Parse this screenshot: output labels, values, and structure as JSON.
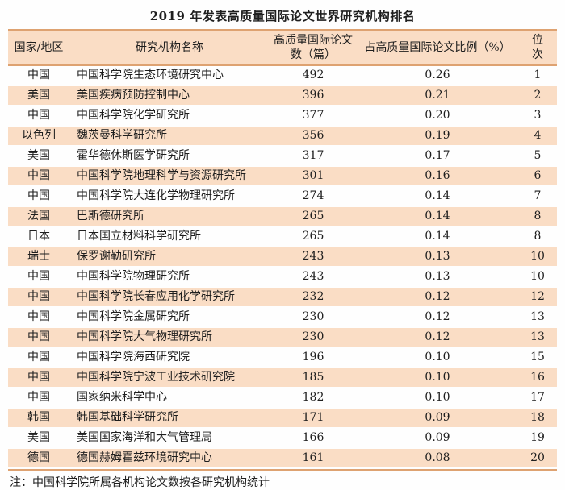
{
  "title": "2019 年发表高质量国际论文世界研究机构排名",
  "note": "注：中国科学院所属各机构论文数按各研究机构统计",
  "colors": {
    "row_highlight": "#faddc5",
    "rule_line": "#dea271",
    "text": "#1e1e1e",
    "background": "#fefefe"
  },
  "table": {
    "headers": {
      "country": "国家/地区",
      "institution": "研究机构名称",
      "papers": "高质量国际论文数（篇）",
      "ratio": "占高质量国际论文比例（%）",
      "rank": "位次"
    },
    "rows": [
      [
        "中国",
        "中国科学院生态环境研究中心",
        "492",
        "0.26",
        "1"
      ],
      [
        "美国",
        "美国疾病预防控制中心",
        "396",
        "0.21",
        "2"
      ],
      [
        "中国",
        "中国科学院化学研究所",
        "377",
        "0.20",
        "3"
      ],
      [
        "以色列",
        "魏茨曼科学研究所",
        "356",
        "0.19",
        "4"
      ],
      [
        "美国",
        "霍华德休斯医学研究所",
        "317",
        "0.17",
        "5"
      ],
      [
        "中国",
        "中国科学院地理科学与资源研究所",
        "301",
        "0.16",
        "6"
      ],
      [
        "中国",
        "中国科学院大连化学物理研究所",
        "274",
        "0.14",
        "7"
      ],
      [
        "法国",
        "巴斯德研究所",
        "265",
        "0.14",
        "8"
      ],
      [
        "日本",
        "日本国立材料科学研究所",
        "265",
        "0.14",
        "8"
      ],
      [
        "瑞士",
        "保罗谢勒研究所",
        "243",
        "0.13",
        "10"
      ],
      [
        "中国",
        "中国科学院物理研究所",
        "243",
        "0.13",
        "10"
      ],
      [
        "中国",
        "中国科学院长春应用化学研究所",
        "232",
        "0.12",
        "12"
      ],
      [
        "中国",
        "中国科学院金属研究所",
        "230",
        "0.12",
        "13"
      ],
      [
        "中国",
        "中国科学院大气物理研究所",
        "230",
        "0.12",
        "13"
      ],
      [
        "中国",
        "中国科学院海西研究院",
        "196",
        "0.10",
        "15"
      ],
      [
        "中国",
        "中国科学院宁波工业技术研究院",
        "185",
        "0.10",
        "16"
      ],
      [
        "中国",
        "国家纳米科学中心",
        "182",
        "0.10",
        "17"
      ],
      [
        "韩国",
        "韩国基础科学研究所",
        "171",
        "0.09",
        "18"
      ],
      [
        "美国",
        "美国国家海洋和大气管理局",
        "166",
        "0.09",
        "19"
      ],
      [
        "德国",
        "德国赫姆霍兹环境研究中心",
        "161",
        "0.08",
        "20"
      ]
    ]
  }
}
